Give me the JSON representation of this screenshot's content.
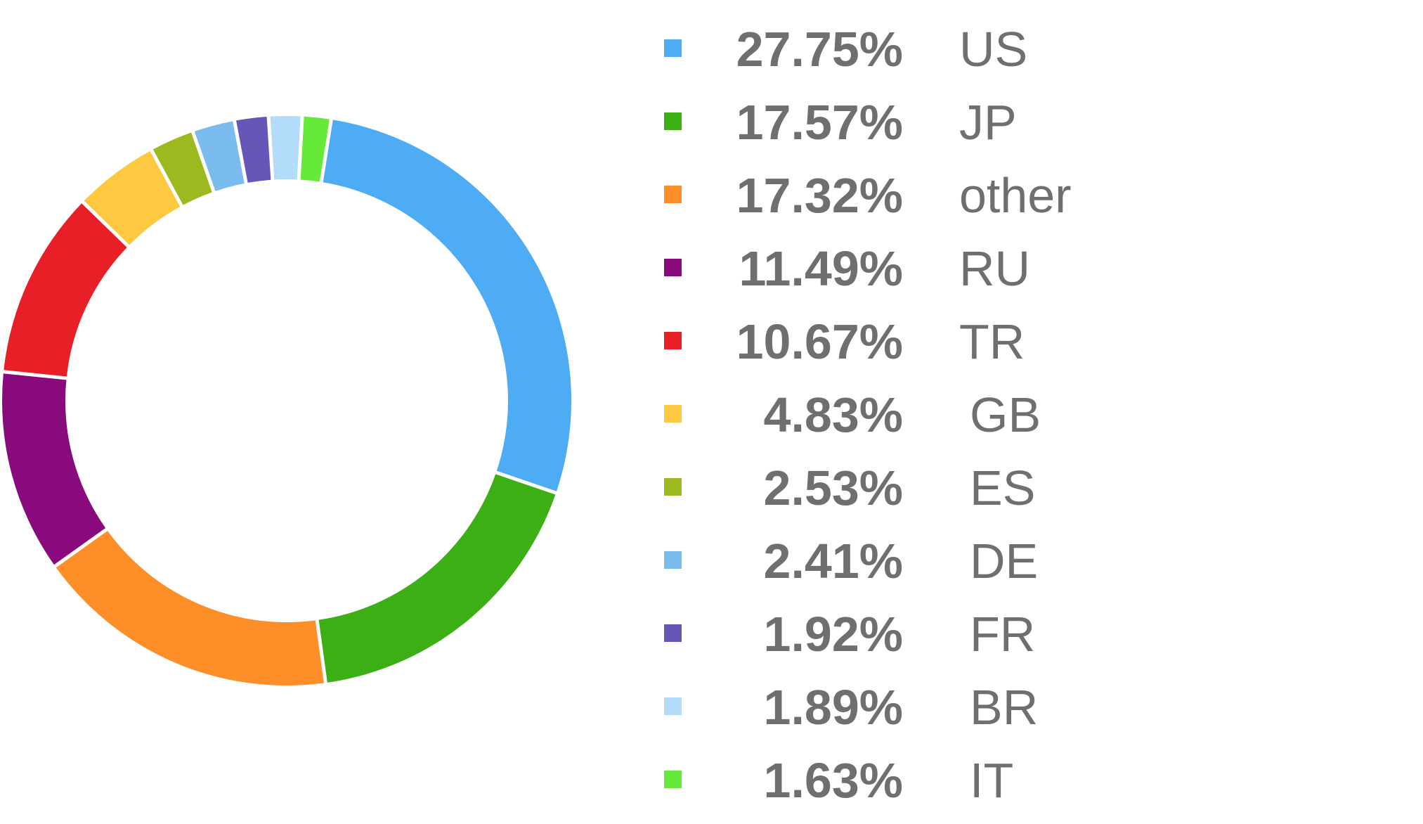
{
  "chart_data": {
    "type": "pie",
    "donut": true,
    "legend_placement": "right",
    "slices": [
      {
        "label": "US",
        "value": 27.75,
        "display": "27.75%",
        "color": "#4dacf3"
      },
      {
        "label": "JP",
        "value": 17.57,
        "display": "17.57%",
        "color": "#3caf14"
      },
      {
        "label": "other",
        "value": 17.32,
        "display": "17.32%",
        "color": "#fd8e28"
      },
      {
        "label": "RU",
        "value": 11.49,
        "display": "11.49%",
        "color": "#880a7c"
      },
      {
        "label": "TR",
        "value": 10.67,
        "display": "10.67%",
        "color": "#e81f26"
      },
      {
        "label": "GB",
        "value": 4.83,
        "display": "4.83%",
        "color": "#fec840"
      },
      {
        "label": "ES",
        "value": 2.53,
        "display": "2.53%",
        "color": "#9cb920"
      },
      {
        "label": "DE",
        "value": 2.41,
        "display": "2.41%",
        "color": "#7bbcee"
      },
      {
        "label": "FR",
        "value": 1.92,
        "display": "1.92%",
        "color": "#6755b8"
      },
      {
        "label": "BR",
        "value": 1.89,
        "display": "1.89%",
        "color": "#b2dcf9"
      },
      {
        "label": "IT",
        "value": 1.63,
        "display": "1.63%",
        "color": "#66ea3a"
      }
    ]
  }
}
